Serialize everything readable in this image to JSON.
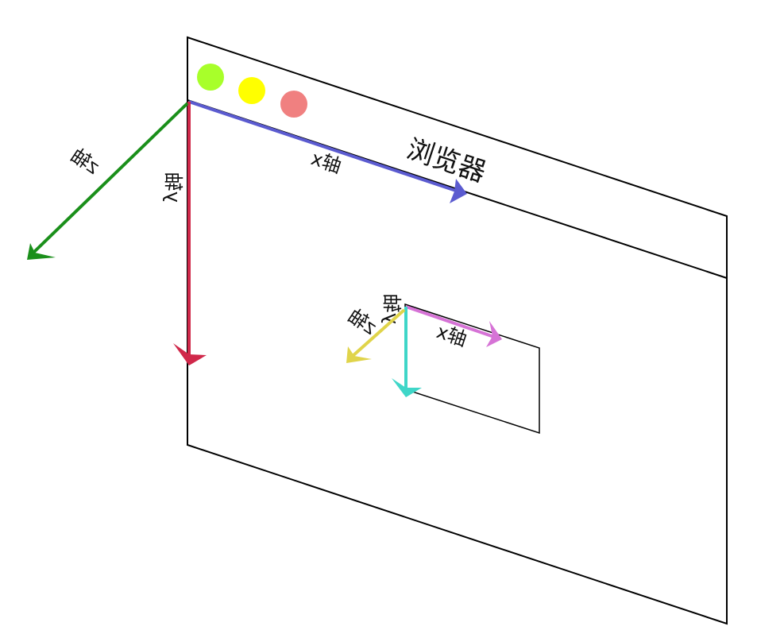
{
  "browser": {
    "title": "浏览器",
    "window_dots": [
      {
        "name": "green",
        "color": "#a8ff2a"
      },
      {
        "name": "yellow",
        "color": "#ffff00"
      },
      {
        "name": "red",
        "color": "#f08080"
      }
    ]
  },
  "page_axes": {
    "x_label": "x轴",
    "y_label": "y轴",
    "z_label": "z轴",
    "colors": {
      "x": "#5b5bd0",
      "y": "#d0284a",
      "z": "#1a8f1a"
    }
  },
  "element_axes": {
    "x_label": "x轴",
    "y_label": "y轴",
    "z_label": "z轴",
    "colors": {
      "x": "#d673d6",
      "y": "#3fd6c8",
      "z": "#e0d44a"
    }
  }
}
